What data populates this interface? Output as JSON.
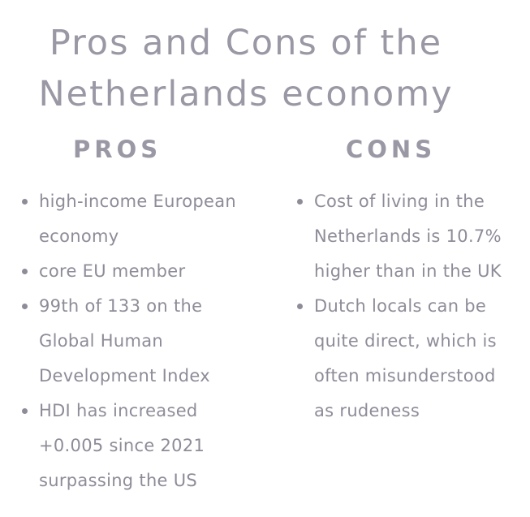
{
  "title": {
    "line1": "Pros and Cons of the",
    "line2": "Netherlands economy"
  },
  "pros": {
    "heading": "PROS",
    "items": [
      "high-income European economy",
      "core EU member",
      "99th of 133 on the Global Human Development Index",
      "HDI has increased +0.005 since 2021 surpassing the US"
    ]
  },
  "cons": {
    "heading": "CONS",
    "items": [
      "Cost of living in the Netherlands is 10.7% higher than in the UK",
      "Dutch locals can be quite direct, which is often misunderstood as rudeness"
    ]
  }
}
